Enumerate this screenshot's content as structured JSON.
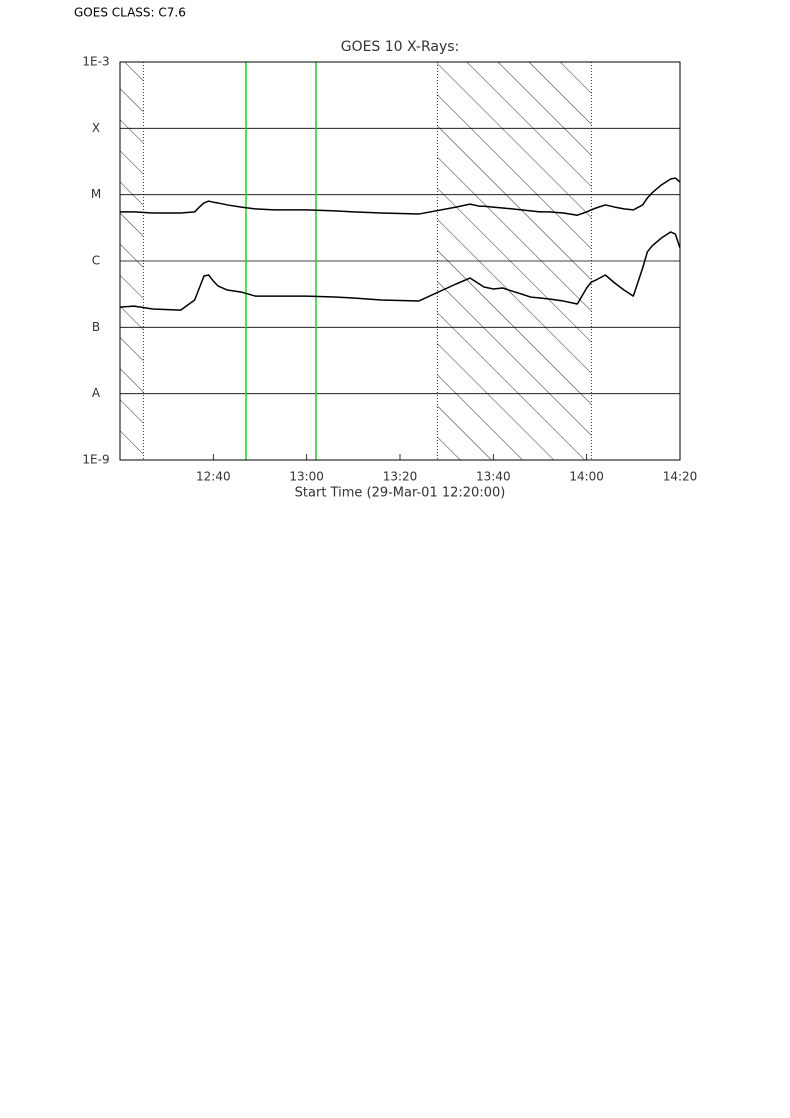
{
  "chart_data": {
    "type": "line",
    "annotation": "GOES CLASS: C7.6",
    "title": "GOES 10 X-Rays:",
    "x_label": "Start Time (29-Mar-01 12:20:00)",
    "log_scale": true,
    "grid": true,
    "x": [
      "12:20",
      "12:23",
      "12:27",
      "12:33",
      "12:36",
      "12:37",
      "12:38",
      "12:39",
      "12:40",
      "12:41",
      "12:43",
      "12:46",
      "12:49",
      "12:53",
      "13:00",
      "13:06",
      "13:10",
      "13:16",
      "13:24",
      "13:32",
      "13:35",
      "13:37",
      "13:38",
      "13:40",
      "13:42",
      "13:44",
      "13:46",
      "13:48",
      "13:50",
      "13:52",
      "13:55",
      "13:58",
      "14:00",
      "14:01",
      "14:02",
      "14:04",
      "14:06",
      "14:08",
      "14:10",
      "14:12",
      "14:13",
      "14:14",
      "14:16",
      "14:18",
      "14:19",
      "14:20"
    ],
    "xlim": [
      "12:20",
      "14:20"
    ],
    "xticks": [
      "12:40",
      "13:00",
      "13:20",
      "13:40",
      "14:00",
      "14:20"
    ],
    "ylim": [
      1e-09,
      0.001
    ],
    "yticks": [
      {
        "value": 1e-09,
        "label": "1E-9"
      },
      {
        "value": 1e-08,
        "label": "A"
      },
      {
        "value": 1e-07,
        "label": "B"
      },
      {
        "value": 1e-06,
        "label": "C"
      },
      {
        "value": 1e-05,
        "label": "M"
      },
      {
        "value": 0.0001,
        "label": "X"
      },
      {
        "value": 0.001,
        "label": "1E-3"
      }
    ],
    "series": [
      {
        "color": "#000000",
        "values": [
          5.5e-06,
          5.5e-06,
          5.3e-06,
          5.3e-06,
          5.5e-06,
          6.5e-06,
          7.5e-06,
          8e-06,
          7.7e-06,
          7.5e-06,
          7e-06,
          6.5e-06,
          6.1e-06,
          5.9e-06,
          5.9e-06,
          5.7e-06,
          5.5e-06,
          5.3e-06,
          5.1e-06,
          6.5e-06,
          7.2e-06,
          6.7e-06,
          6.7e-06,
          6.5e-06,
          6.3e-06,
          6.1e-06,
          5.9e-06,
          5.7e-06,
          5.5e-06,
          5.5e-06,
          5.3e-06,
          4.9e-06,
          5.5e-06,
          5.9e-06,
          6.3e-06,
          7e-06,
          6.5e-06,
          6.1e-06,
          5.9e-06,
          7e-06,
          8.9e-06,
          1.06e-05,
          1.4e-05,
          1.72e-05,
          1.78e-05,
          1.55e-05
        ]
      },
      {
        "color": "#000000",
        "values": [
          2.02e-07,
          2.09e-07,
          1.89e-07,
          1.82e-07,
          2.58e-07,
          3.92e-07,
          5.94e-07,
          6.15e-07,
          4.99e-07,
          4.2e-07,
          3.65e-07,
          3.4e-07,
          2.96e-07,
          2.96e-07,
          2.96e-07,
          2.86e-07,
          2.77e-07,
          2.58e-07,
          2.49e-07,
          4.5e-07,
          5.54e-07,
          4.5e-07,
          4.06e-07,
          3.78e-07,
          3.92e-07,
          3.52e-07,
          3.18e-07,
          2.86e-07,
          2.77e-07,
          2.67e-07,
          2.49e-07,
          2.25e-07,
          3.92e-07,
          4.82e-07,
          5.17e-07,
          6.15e-07,
          4.66e-07,
          3.65e-07,
          2.96e-07,
          7.84e-07,
          1.37e-06,
          1.68e-06,
          2.22e-06,
          2.74e-06,
          2.55e-06,
          1.57e-06
        ]
      }
    ],
    "hatched_intervals": [
      [
        "12:20",
        "12:25"
      ],
      [
        "13:28",
        "14:01"
      ]
    ],
    "marker_lines": {
      "color": "#22cc22",
      "x": [
        "12:47",
        "13:02"
      ]
    }
  }
}
